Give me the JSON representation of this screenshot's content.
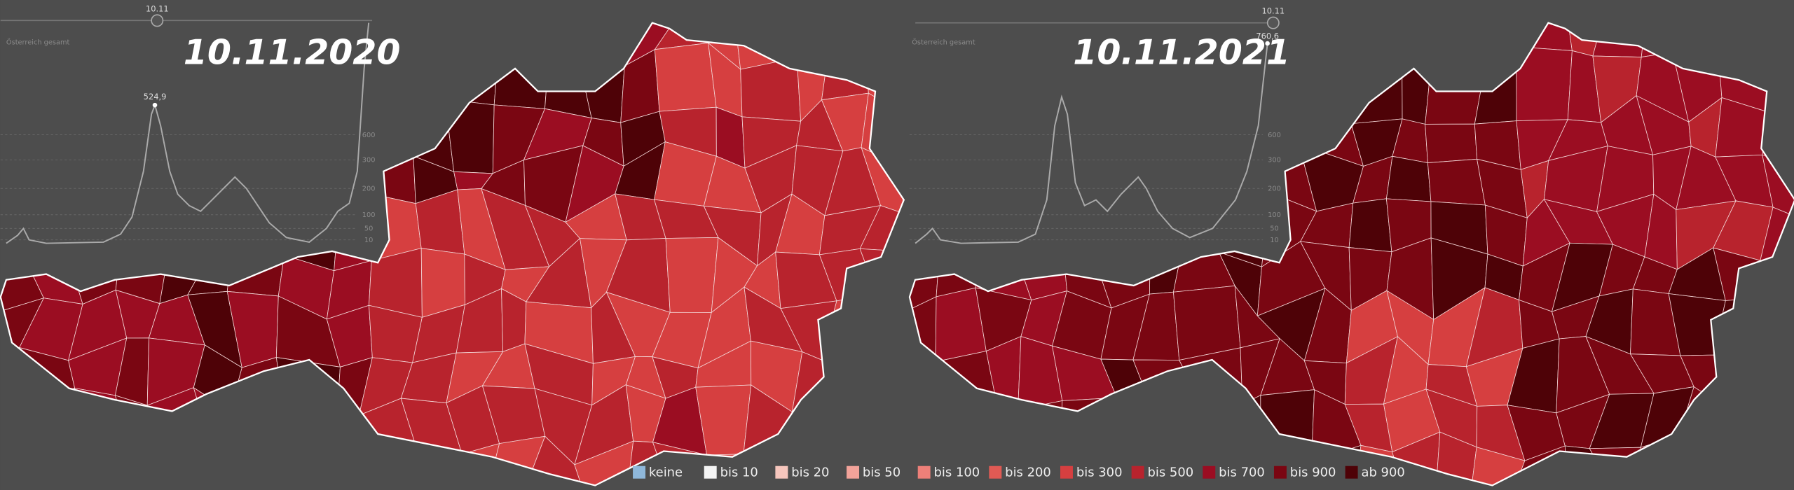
{
  "panels": [
    {
      "date": "10.11.2020",
      "slider_label": "10.11",
      "region_label": "Österreich gesamt",
      "peak_label": "524,9",
      "axis_labels": [
        "600",
        "300",
        "200",
        "100",
        "50",
        "10"
      ]
    },
    {
      "date": "10.11.2021",
      "slider_label": "10.11",
      "region_label": "Österreich gesamt",
      "peak_label": "760,6",
      "axis_labels": [
        "600",
        "300",
        "200",
        "100",
        "50",
        "10"
      ]
    }
  ],
  "legend": [
    {
      "label": "keine",
      "color": "#8fb8db"
    },
    {
      "label": "bis 10",
      "color": "#f4f4f4"
    },
    {
      "label": "bis 20",
      "color": "#f6c6bd"
    },
    {
      "label": "bis 50",
      "color": "#f2a39a"
    },
    {
      "label": "bis 100",
      "color": "#ee8079"
    },
    {
      "label": "bis 200",
      "color": "#e05a54"
    },
    {
      "label": "bis 300",
      "color": "#d63f40"
    },
    {
      "label": "bis 500",
      "color": "#b8232d"
    },
    {
      "label": "bis 700",
      "color": "#9b0d22"
    },
    {
      "label": "bis 900",
      "color": "#7a0612"
    },
    {
      "label": "ab 900",
      "color": "#4e0207"
    }
  ]
}
